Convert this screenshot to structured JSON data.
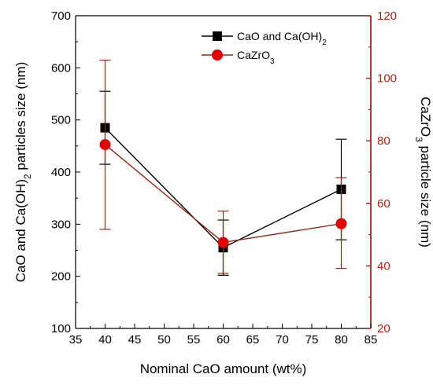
{
  "chart_data": {
    "type": "line",
    "xlabel": "Nominal CaO amount (wt%)",
    "ylabel_left_parts": [
      "CaO and Ca(OH)",
      "2",
      " particles size (nm)"
    ],
    "ylabel_right_parts": [
      "CaZrO",
      "3",
      " particle size (nm)"
    ],
    "xlim": [
      35,
      85
    ],
    "xticks": [
      35,
      40,
      45,
      50,
      55,
      60,
      65,
      70,
      75,
      80,
      85
    ],
    "ylim_left": [
      100,
      700
    ],
    "yticks_left": [
      100,
      200,
      300,
      400,
      500,
      600,
      700
    ],
    "ylim_right": [
      20,
      120
    ],
    "yticks_right": [
      20,
      40,
      60,
      80,
      100,
      120
    ],
    "grid": false,
    "legend_position": "top-right",
    "series": [
      {
        "name_parts": [
          "CaO and Ca(OH)",
          "2"
        ],
        "axis": "left",
        "marker": "square",
        "color": "#000000",
        "x": [
          40,
          60,
          80
        ],
        "y": [
          485,
          255,
          367
        ],
        "err_low": [
          415,
          202,
          270
        ],
        "err_high": [
          555,
          308,
          463
        ]
      },
      {
        "name_parts": [
          "CaZrO",
          "3"
        ],
        "axis": "right",
        "marker": "circle",
        "color": "#e00000",
        "line_color": "#8b2b1a",
        "x": [
          40,
          60,
          80
        ],
        "y": [
          78.8,
          47.5,
          53.5
        ],
        "err_low": [
          51.7,
          37.6,
          39.2
        ],
        "err_high": [
          105.8,
          57.5,
          68.2
        ]
      }
    ],
    "colors": {
      "left_axis": "#000000",
      "right_axis": "#b02418"
    }
  }
}
